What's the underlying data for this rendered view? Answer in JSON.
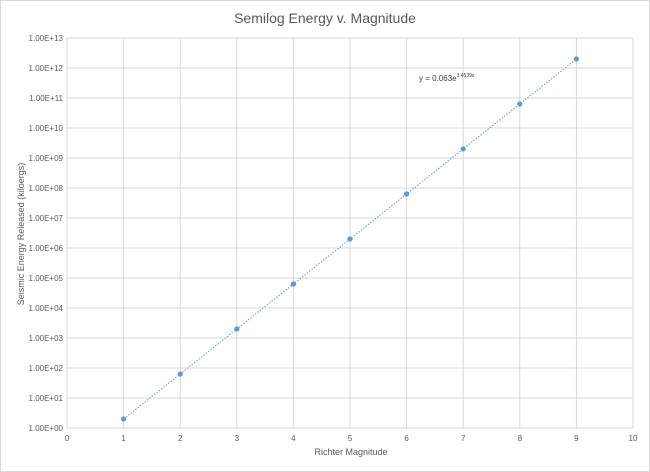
{
  "chart_data": {
    "type": "scatter",
    "title": "Semilog Energy v. Magnitude",
    "xlabel": "Richter Magnitude",
    "ylabel": "Seismic Energy Released (kiloergs)",
    "xlim": [
      0,
      10
    ],
    "xticks": [
      0,
      1,
      2,
      3,
      4,
      5,
      6,
      7,
      8,
      9,
      10
    ],
    "y_scale": "log",
    "ylim": [
      1,
      10000000000000
    ],
    "ytick_labels": [
      "1.00E+00",
      "1.00E+01",
      "1.00E+02",
      "1.00E+03",
      "1.00E+04",
      "1.00E+05",
      "1.00E+06",
      "1.00E+07",
      "1.00E+08",
      "1.00E+09",
      "1.00E+10",
      "1.00E+11",
      "1.00E+12",
      "1.00E+13"
    ],
    "grid": "vertical and horizontal",
    "legend": "none",
    "series": [
      {
        "x": [
          1,
          2,
          3,
          4,
          5,
          6,
          7,
          8,
          9
        ],
        "y": [
          2,
          63,
          2000,
          63000,
          2000000,
          63000000,
          2000000000,
          63000000000,
          2000000000000
        ],
        "color": "#5b9bd5"
      }
    ],
    "trendline": {
      "type": "exponential",
      "color": "#5b9bd5",
      "style": "dotted",
      "equation_text": "y = 0.063e",
      "equation_exponent": "3.4539x",
      "a": 0.063,
      "b": 3.4539
    }
  }
}
